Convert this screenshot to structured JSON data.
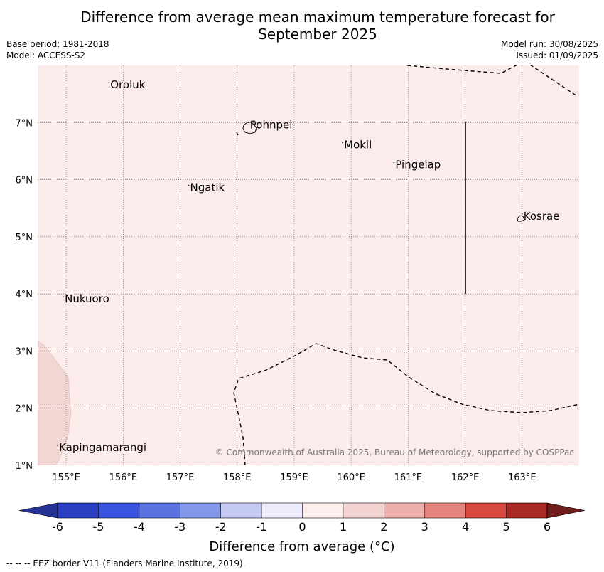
{
  "title_line1": "Difference from average mean maximum temperature forecast for",
  "title_line2": "September 2025",
  "base_period": "Base period: 1981-2018",
  "model": "Model: ACCESS-S2",
  "model_run": "Model run: 30/08/2025",
  "issued": "Issued: 01/09/2025",
  "copyright": "© Commonwealth of Australia 2025, Bureau of Meteorology, supported by COSPPac",
  "colorbar_label": "Difference from average (°C)",
  "footer_note": "--  --  -- EEZ border V11 (Flanders Marine Institute, 2019).",
  "map": {
    "lon_ticks": [
      {
        "value": 155,
        "label": "155°E"
      },
      {
        "value": 156,
        "label": "156°E"
      },
      {
        "value": 157,
        "label": "157°E"
      },
      {
        "value": 158,
        "label": "158°E"
      },
      {
        "value": 159,
        "label": "159°E"
      },
      {
        "value": 160,
        "label": "160°E"
      },
      {
        "value": 161,
        "label": "161°E"
      },
      {
        "value": 162,
        "label": "162°E"
      },
      {
        "value": 163,
        "label": "163°E"
      }
    ],
    "lat_ticks": [
      {
        "value": 7,
        "label": "7°N"
      },
      {
        "value": 6,
        "label": "6°N"
      },
      {
        "value": 5,
        "label": "5°N"
      },
      {
        "value": 4,
        "label": "4°N"
      },
      {
        "value": 3,
        "label": "3°N"
      },
      {
        "value": 2,
        "label": "2°N"
      },
      {
        "value": 1,
        "label": "1°N"
      }
    ],
    "extent": {
      "lon_min": 154.5,
      "lon_max": 164.0,
      "lat_min": 1.0,
      "lat_max": 8.0
    },
    "places": [
      {
        "name": "Oroluk",
        "lon": 155.75,
        "lat": 7.6
      },
      {
        "name": "Pohnpei",
        "lon": 158.2,
        "lat": 6.9
      },
      {
        "name": "Mokil",
        "lon": 159.85,
        "lat": 6.55
      },
      {
        "name": "Pingelap",
        "lon": 160.75,
        "lat": 6.2
      },
      {
        "name": "Ngatik",
        "lon": 157.15,
        "lat": 5.8
      },
      {
        "name": "Kosrae",
        "lon": 163.0,
        "lat": 5.3
      },
      {
        "name": "Nukuoro",
        "lon": 154.95,
        "lat": 3.85
      },
      {
        "name": "Kapingamarangi",
        "lon": 154.85,
        "lat": 1.25
      }
    ],
    "background_anomaly_color": "#fbebea",
    "warm_patch_color": "#f1d6d3"
  },
  "colorbar": {
    "ticks": [
      "-6",
      "-5",
      "-4",
      "-3",
      "-2",
      "-1",
      "0",
      "1",
      "2",
      "3",
      "4",
      "5",
      "6"
    ],
    "colors": [
      "#253494",
      "#2a40c0",
      "#3a55dd",
      "#5a73e0",
      "#8497e8",
      "#c3c9f2",
      "#ebebfb",
      "#fdeeed",
      "#f3d3d2",
      "#edb0ad",
      "#e5837d",
      "#d84a40",
      "#a82a25",
      "#6e1d1a"
    ]
  }
}
